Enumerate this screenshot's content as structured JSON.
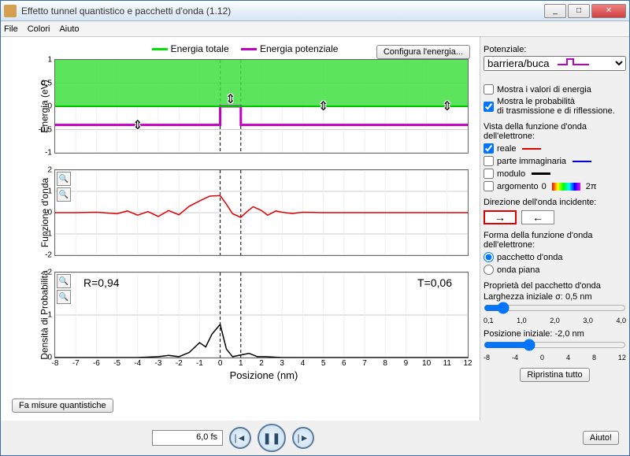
{
  "window": {
    "title": "Effetto tunnel quantistico e pacchetti d'onda (1.12)"
  },
  "menu": {
    "file": "File",
    "colors": "Colori",
    "help": "Aiuto"
  },
  "legend": {
    "total": "Energia totale",
    "potential": "Energia potenziale",
    "total_color": "#00e000",
    "potential_color": "#c000c0"
  },
  "configure_btn": "Configura l'energia...",
  "charts": {
    "xlabel": "Posizione (nm)",
    "xlim": [
      -8,
      12
    ],
    "xticks": [
      -8,
      -7,
      -6,
      -5,
      -4,
      -3,
      -2,
      -1,
      0,
      1,
      2,
      3,
      4,
      5,
      6,
      7,
      8,
      9,
      10,
      11,
      12
    ],
    "barrier_x": [
      0,
      1
    ],
    "energy": {
      "ylabel": "Energia (eV)",
      "ylim": [
        -1.0,
        1.0
      ],
      "yticks": [
        -1.0,
        -0.5,
        0.0,
        0.5,
        1.0
      ],
      "total_level": 0.0,
      "potential_level": -0.4,
      "fill_color": "#40e040",
      "total_line_color": "#00c000",
      "potential_line_color": "#c000c0",
      "handles_x": [
        -4,
        0.5,
        5,
        11
      ]
    },
    "wave": {
      "ylabel": "Funzione d'onda",
      "ylim": [
        -2,
        2
      ],
      "yticks": [
        -2,
        -1,
        0,
        1,
        2
      ],
      "color": "#e00000",
      "points": [
        [
          -8,
          0
        ],
        [
          -7,
          0
        ],
        [
          -6,
          0.02
        ],
        [
          -5,
          -0.05
        ],
        [
          -4.5,
          0.08
        ],
        [
          -4,
          -0.12
        ],
        [
          -3.5,
          0.05
        ],
        [
          -3,
          -0.18
        ],
        [
          -2.5,
          0.1
        ],
        [
          -2,
          -0.1
        ],
        [
          -1.5,
          0.3
        ],
        [
          -1,
          0.55
        ],
        [
          -0.5,
          0.78
        ],
        [
          0,
          0.8
        ],
        [
          0.3,
          0.4
        ],
        [
          0.6,
          -0.05
        ],
        [
          1,
          -0.22
        ],
        [
          1.3,
          0.05
        ],
        [
          1.6,
          0.28
        ],
        [
          2,
          0.1
        ],
        [
          2.3,
          -0.12
        ],
        [
          2.7,
          0.08
        ],
        [
          3,
          0.02
        ],
        [
          3.5,
          -0.04
        ],
        [
          4,
          0.02
        ],
        [
          5,
          0
        ],
        [
          8,
          0
        ],
        [
          12,
          0
        ]
      ]
    },
    "density": {
      "ylabel": "Densità di Probabilità",
      "ylim": [
        0,
        2
      ],
      "yticks": [
        0,
        1,
        2
      ],
      "color": "#000000",
      "R_label": "R=0,94",
      "T_label": "T=0,06",
      "points": [
        [
          -8,
          0
        ],
        [
          -4,
          0
        ],
        [
          -3,
          0.02
        ],
        [
          -2.5,
          0.05
        ],
        [
          -2,
          0.02
        ],
        [
          -1.5,
          0.12
        ],
        [
          -1,
          0.35
        ],
        [
          -0.7,
          0.25
        ],
        [
          -0.4,
          0.55
        ],
        [
          0,
          0.78
        ],
        [
          0.3,
          0.2
        ],
        [
          0.6,
          0.02
        ],
        [
          1,
          0.06
        ],
        [
          1.4,
          0.1
        ],
        [
          1.8,
          0.02
        ],
        [
          2.2,
          0.02
        ],
        [
          3,
          0
        ],
        [
          12,
          0
        ]
      ]
    }
  },
  "measure_btn": "Fa misure quantistiche",
  "sidebar": {
    "potential_label": "Potenziale:",
    "potential_select": "barriera/buca",
    "show_energy": "Mostra i valori di energia",
    "show_prob": "Mostra le probabilità\ndi trasmissione e di riflessione.",
    "view_label": "Vista della funzione d'onda dell'elettrone:",
    "real": "reale",
    "real_color": "#e00000",
    "imag": "parte immaginaria",
    "imag_color": "#0000e0",
    "modulus": "modulo",
    "modulus_color": "#000000",
    "argument": "argomento",
    "arg_left": "0",
    "arg_right": "2π",
    "direction_label": "Direzione dell'onda incidente:",
    "form_label": "Forma della funzione d'onda dell'elettrone:",
    "packet": "pacchetto d'onda",
    "plane": "onda piana",
    "props_label": "Proprietà del pacchetto d'onda",
    "width_label": "Larghezza iniziale σ: 0,5 nm",
    "width_ticks": [
      "0,1",
      "1,0",
      "2,0",
      "3,0",
      "4,0"
    ],
    "pos_label": "Posizione iniziale: -2,0 nm",
    "pos_ticks": [
      "-8",
      "-4",
      "0",
      "4",
      "8",
      "12"
    ],
    "reset_btn": "Ripristina tutto"
  },
  "playback": {
    "time": "6,0",
    "unit": "fs"
  },
  "help_btn": "Aiuto!"
}
